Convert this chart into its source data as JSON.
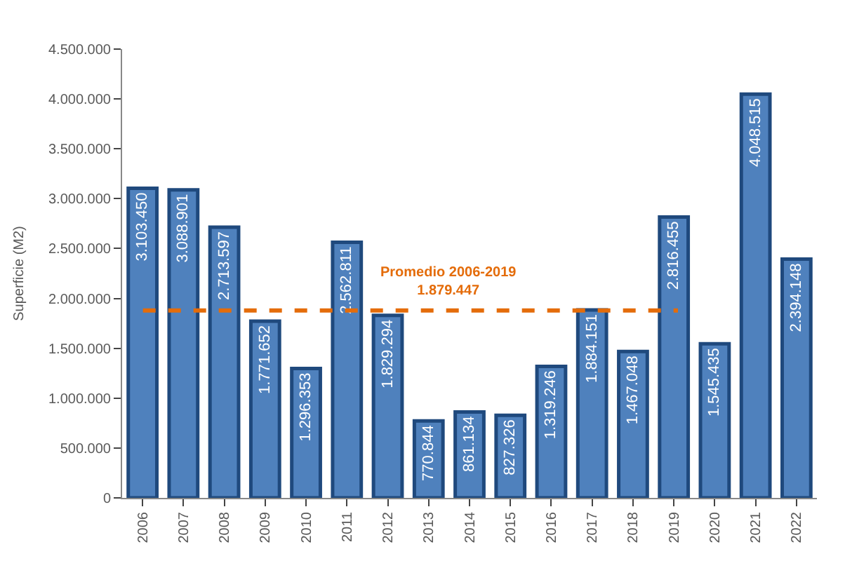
{
  "chart_data": {
    "type": "bar",
    "ylabel": "Superficie (M2)",
    "categories": [
      "2006",
      "2007",
      "2008",
      "2009",
      "2010",
      "2011",
      "2012",
      "2013",
      "2014",
      "2015",
      "2016",
      "2017",
      "2018",
      "2019",
      "2020",
      "2021",
      "2022"
    ],
    "values": [
      3103450,
      3088901,
      2713597,
      1771652,
      1296353,
      2562811,
      1829294,
      770844,
      861134,
      827326,
      1319246,
      1884151,
      1467048,
      2816455,
      1545435,
      4048515,
      2394148
    ],
    "value_labels": [
      "3.103.450",
      "3.088.901",
      "2.713.597",
      "1.771.652",
      "1.296.353",
      "2.562.811",
      "1.829.294",
      "770.844",
      "861.134",
      "827.326",
      "1.319.246",
      "1.884.151",
      "1.467.048",
      "2.816.455",
      "1.545.435",
      "4.048.515",
      "2.394.148"
    ],
    "color": "#4f81bd",
    "ylim": [
      0,
      4500000
    ],
    "yticks": [
      0,
      {
        "value": 500000,
        "label": "500.000"
      },
      {
        "value": 1000000,
        "label": "1.000.000"
      },
      {
        "value": 1500000,
        "label": "1.500.000"
      },
      {
        "value": 2000000,
        "label": "2.000.000"
      },
      {
        "value": 2500000,
        "label": "2.500.000"
      },
      {
        "value": 3000000,
        "label": "3.000.000"
      },
      {
        "value": 3500000,
        "label": "3.500.000"
      },
      {
        "value": 4000000,
        "label": "4.000.000"
      },
      {
        "value": 4500000,
        "label": "4.500.000"
      }
    ],
    "ref_lines": [
      {
        "axis": "y",
        "value": 1879447,
        "label": "Promedio 2006-2019\n1.879.447",
        "color": "#e46c0a",
        "line_style": "dashed"
      }
    ]
  }
}
